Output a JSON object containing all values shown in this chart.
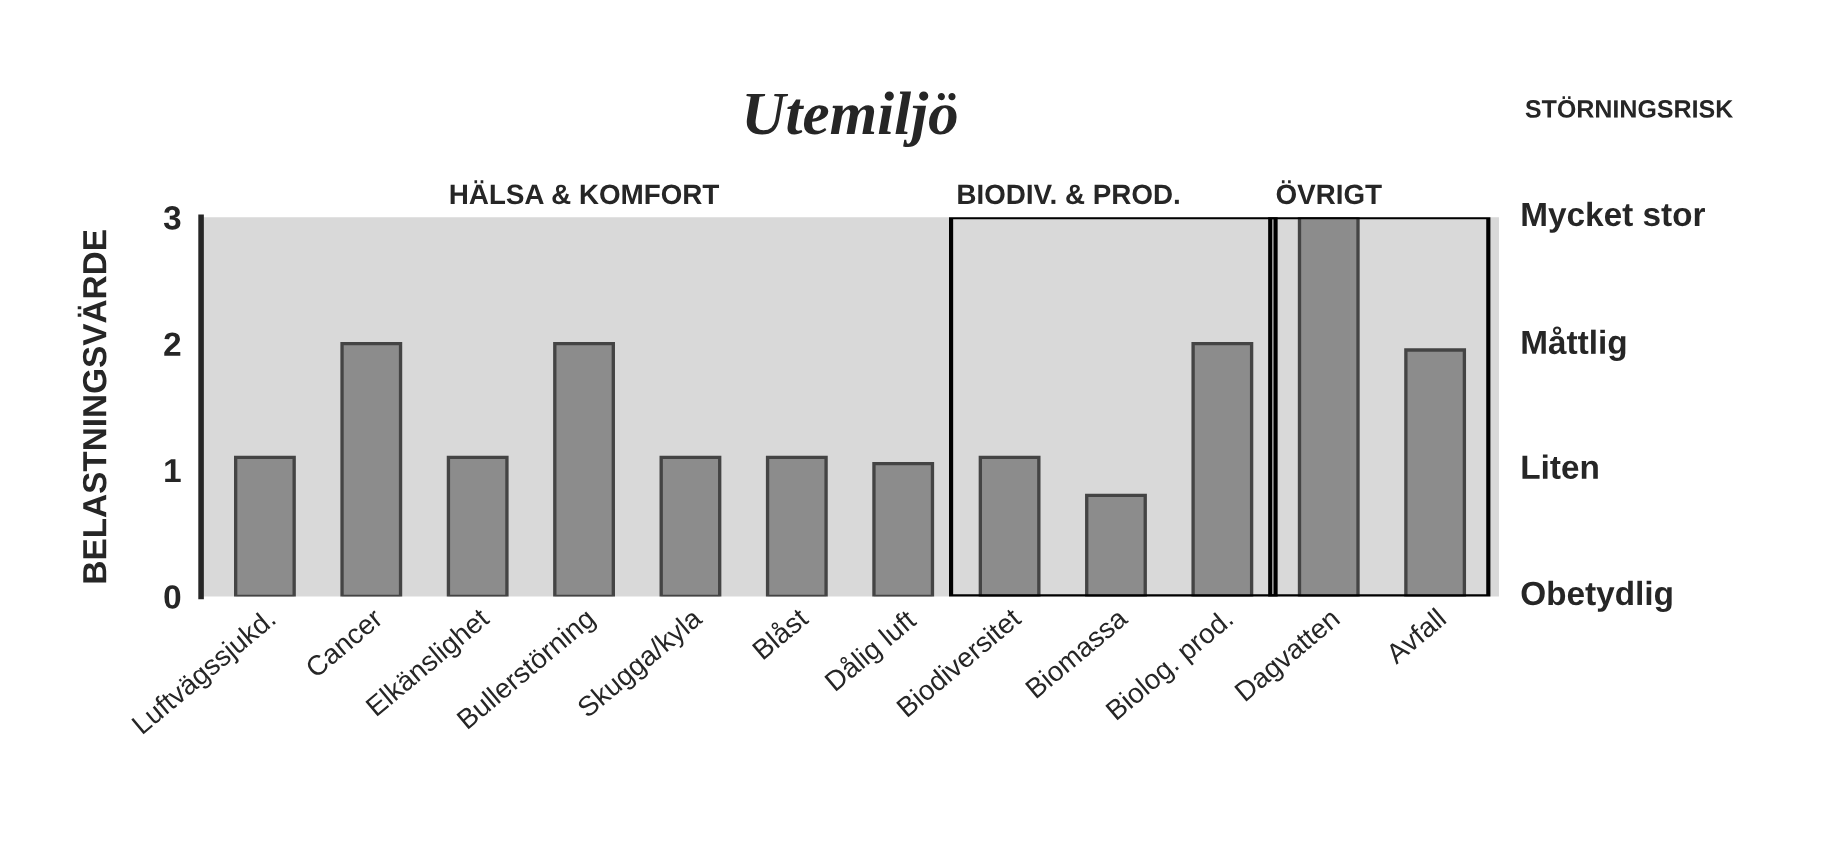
{
  "chart_data": {
    "type": "bar",
    "title": "Utemiljö",
    "ylabel": "BELASTNINGSVÄRDE",
    "y2label": "STÖRNINGSRISK",
    "categories": [
      "Luftvägssjukd.",
      "Cancer",
      "Elkänslighet",
      "Bullerstörning",
      "Skugga/kyla",
      "Blåst",
      "Dålig luft",
      "Biodiversitet",
      "Biomassa",
      "Biolog. prod.",
      "Dagvatten",
      "Avfall"
    ],
    "values": [
      1.1,
      2,
      1.1,
      2,
      1.1,
      1.1,
      1.05,
      1.1,
      0.8,
      2,
      3,
      1.95
    ],
    "color": "#8c8c8c",
    "ylim": [
      0,
      3
    ],
    "yticks": [
      0,
      1,
      2,
      3
    ],
    "annotations": [
      "HÄLSA & KOMFORT",
      "BIODIV. & PROD.",
      "ÖVRIGT",
      "Obetydlig",
      "Liten",
      "Måttlig",
      "Mycket stor"
    ],
    "grid": false
  }
}
